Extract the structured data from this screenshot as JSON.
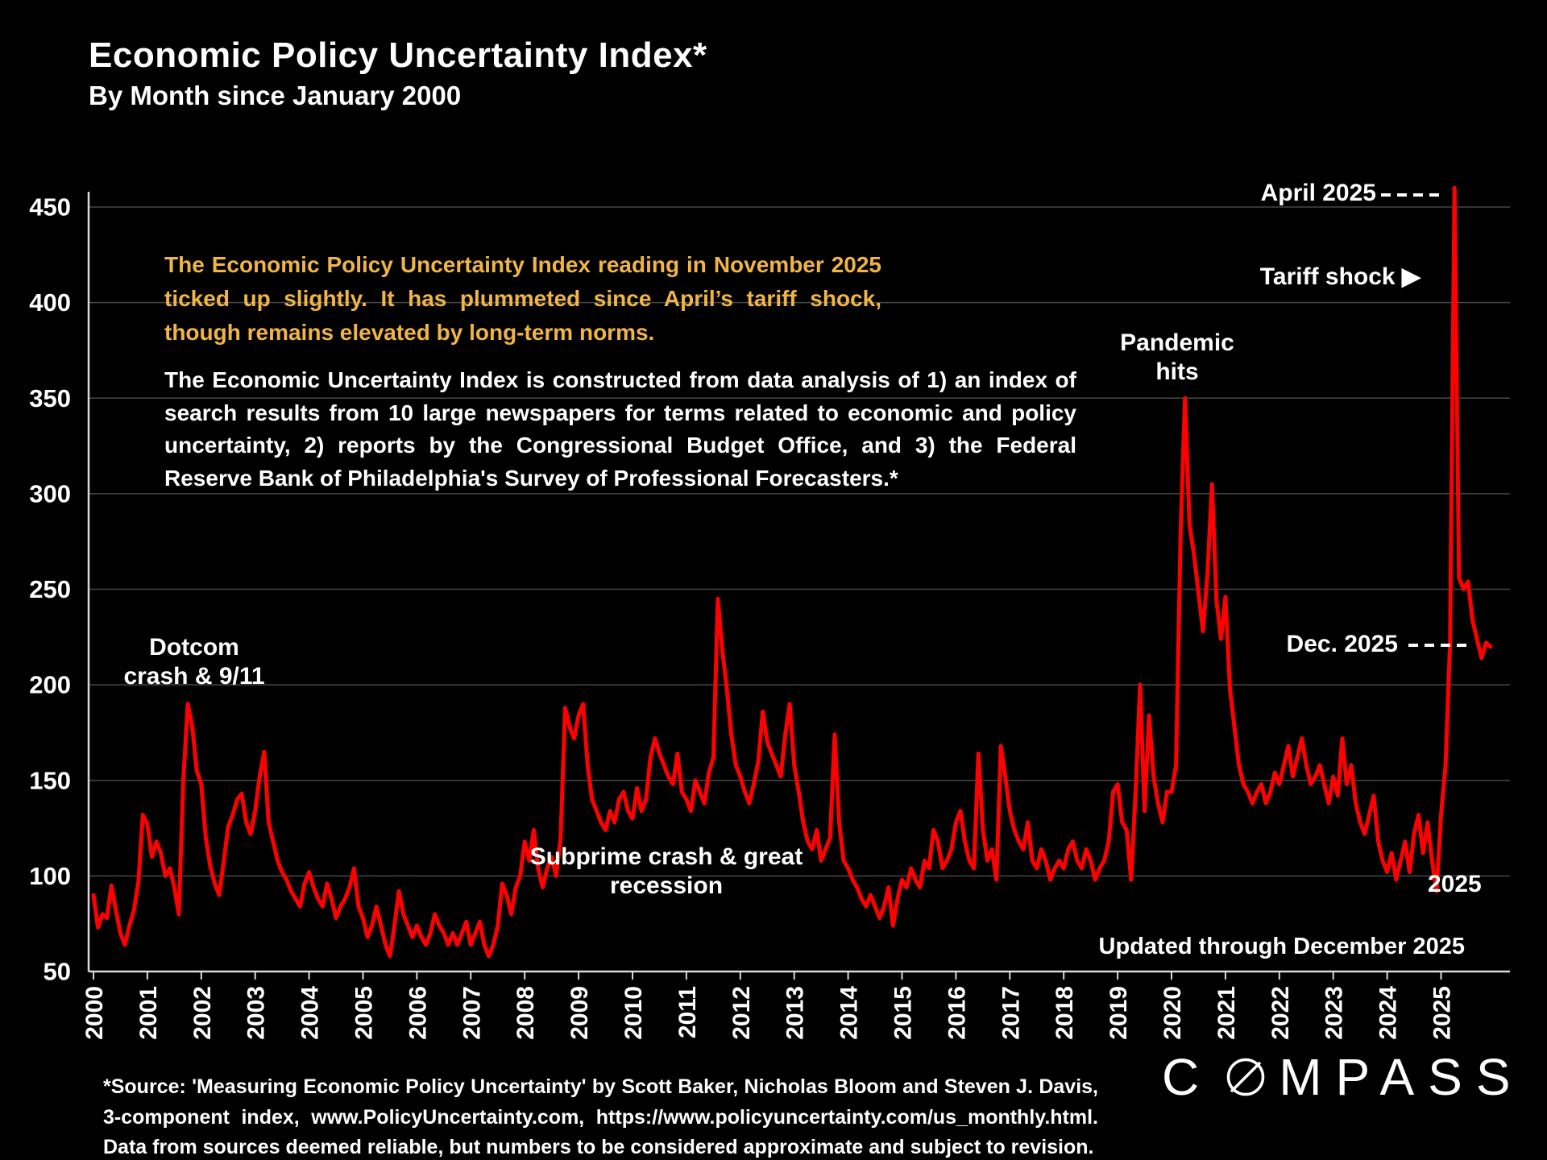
{
  "page": {
    "title": "Economic Policy Uncertainty Index*",
    "subtitle": "By Month since January 2000"
  },
  "commentary": {
    "highlight": "The Economic Policy Uncertainty Index reading in November 2025 ticked up slightly. It has plummeted since April’s tariff shock, though remains elevated by long-term norms.",
    "description": "The Economic Uncertainty Index is constructed from data analysis of 1) an index of search results from 10 large newspapers for terms related to economic and policy uncertainty, 2) reports by the Congressional Budget Office, and 3) the Federal Reserve Bank of Philadelphia's Survey of Professional Forecasters.*"
  },
  "annotations": {
    "april_peak": "April 2025",
    "tariff_shock": "Tariff shock ▶",
    "pandemic": "Pandemic hits",
    "dotcom": "Dotcom crash & 9/11",
    "subprime": "Subprime crash & great recession",
    "dec_2025": "Dec. 2025",
    "year_2025": "2025",
    "updated": "Updated through December 2025"
  },
  "footer": {
    "source": "*Source: 'Measuring Economic Policy Uncertainty' by Scott Baker, Nicholas Bloom and Steven J. Davis, 3-component index, www.PolicyUncertainty.com, https://www.policyuncertainty.com/us_monthly.html. Data from sources deemed reliable, but numbers to be considered approximate and subject to revision.",
    "logo_prefix": "C",
    "logo_suffix": "MPASS"
  },
  "colors": {
    "background": "#000000",
    "line": "#ff0000",
    "highlight_text": "#f0b545",
    "text": "#ffffff",
    "gridline": "#474747",
    "axis": "#d9d9d9"
  },
  "chart_data": {
    "type": "line",
    "title": "Economic Policy Uncertainty Index by Month since January 2000",
    "frequency": "monthly",
    "x_start": "2000-01",
    "x_end": "2025-12",
    "ylim": [
      50,
      470
    ],
    "y_ticks": [
      50,
      100,
      150,
      200,
      250,
      300,
      350,
      400,
      450
    ],
    "x_tick_years": [
      2000,
      2001,
      2002,
      2003,
      2004,
      2005,
      2006,
      2007,
      2008,
      2009,
      2010,
      2011,
      2012,
      2013,
      2014,
      2015,
      2016,
      2017,
      2018,
      2019,
      2020,
      2021,
      2022,
      2023,
      2024,
      2025
    ],
    "grid": true,
    "legend": false,
    "series": [
      {
        "name": "Economic Policy Uncertainty Index (3-component)",
        "color": "#ff0000",
        "values": [
          90,
          73,
          80,
          78,
          95,
          82,
          70,
          64,
          74,
          82,
          97,
          132,
          127,
          110,
          118,
          112,
          100,
          104,
          94,
          80,
          150,
          190,
          178,
          155,
          148,
          120,
          105,
          96,
          90,
          108,
          126,
          132,
          140,
          143,
          128,
          122,
          134,
          152,
          165,
          128,
          118,
          108,
          102,
          98,
          92,
          88,
          84,
          96,
          102,
          94,
          88,
          84,
          96,
          88,
          78,
          84,
          88,
          94,
          104,
          84,
          78,
          68,
          74,
          84,
          74,
          64,
          58,
          74,
          92,
          80,
          74,
          68,
          74,
          68,
          64,
          70,
          80,
          74,
          70,
          64,
          70,
          64,
          70,
          76,
          64,
          70,
          76,
          64,
          58,
          64,
          74,
          96,
          90,
          80,
          94,
          100,
          118,
          108,
          124,
          104,
          94,
          104,
          110,
          100,
          120,
          188,
          178,
          172,
          184,
          190,
          158,
          140,
          134,
          128,
          124,
          134,
          128,
          140,
          144,
          134,
          130,
          146,
          134,
          140,
          162,
          172,
          164,
          158,
          152,
          148,
          164,
          144,
          140,
          134,
          150,
          144,
          138,
          154,
          162,
          245,
          218,
          198,
          174,
          158,
          152,
          144,
          138,
          148,
          160,
          186,
          170,
          164,
          158,
          152,
          174,
          190,
          158,
          144,
          128,
          118,
          114,
          124,
          108,
          114,
          120,
          174,
          128,
          108,
          104,
          98,
          94,
          88,
          84,
          90,
          84,
          78,
          84,
          94,
          74,
          88,
          98,
          94,
          104,
          98,
          94,
          108,
          104,
          124,
          118,
          104,
          108,
          114,
          128,
          134,
          118,
          108,
          104,
          164,
          124,
          108,
          114,
          98,
          168,
          152,
          134,
          124,
          118,
          114,
          128,
          108,
          104,
          114,
          108,
          98,
          104,
          108,
          104,
          114,
          118,
          108,
          104,
          114,
          108,
          98,
          104,
          108,
          118,
          144,
          148,
          128,
          124,
          98,
          144,
          200,
          134,
          184,
          152,
          138,
          128,
          144,
          144,
          158,
          278,
          350,
          284,
          268,
          248,
          228,
          258,
          305,
          244,
          224,
          246,
          198,
          178,
          158,
          148,
          144,
          138,
          144,
          148,
          138,
          144,
          154,
          148,
          158,
          168,
          152,
          162,
          172,
          158,
          148,
          152,
          158,
          148,
          138,
          152,
          142,
          172,
          148,
          158,
          138,
          128,
          122,
          132,
          142,
          118,
          108,
          102,
          112,
          98,
          108,
          118,
          102,
          122,
          132,
          112,
          128,
          108,
          92,
          132,
          158,
          222,
          460,
          256,
          250,
          254,
          234,
          224,
          214,
          222,
          220
        ]
      }
    ],
    "key_points": {
      "dotcom_911_peak": {
        "month": "2001-10",
        "value": 190
      },
      "debt_ceiling_2011_peak": {
        "month": "2011-08",
        "value": 245
      },
      "pandemic_peak": {
        "month": "2020-04",
        "value": 350
      },
      "tariff_shock_peak": {
        "month": "2025-04",
        "value": 460
      },
      "dec_2025_reading": {
        "month": "2025-12",
        "value": 220
      }
    }
  }
}
